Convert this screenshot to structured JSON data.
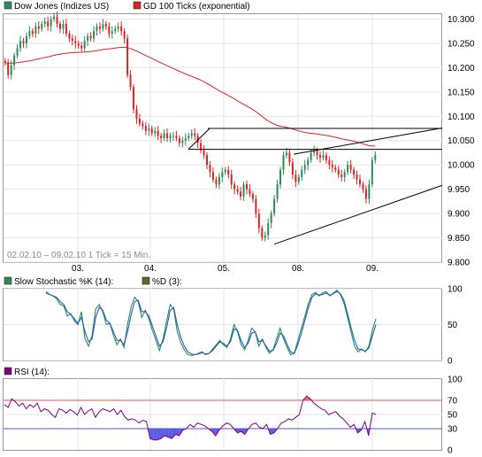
{
  "chart_data": [
    {
      "id": "price",
      "type": "candlestick",
      "legend": [
        {
          "label": "Dow Jones (Indizes US)",
          "color": "#2e8b57"
        },
        {
          "label": "GD 100 Ticks (exponential)",
          "color": "#dd2222"
        }
      ],
      "info_text": "02.02.10 – 09.02.10   1 Tick = 15 Min.",
      "x_ticks": [
        "03.",
        "04.",
        "05.",
        "08.",
        "09."
      ],
      "y_ticks": [
        "10.300",
        "10.250",
        "10.200",
        "10.150",
        "10.100",
        "10.050",
        "10.000",
        "9.950",
        "9.900",
        "9.850",
        "9.800"
      ],
      "ylim": [
        9800,
        10310
      ],
      "colors": {
        "up": "#2e8b57",
        "down": "#dd2222",
        "ema": "#dd2222",
        "trendline": "#000000"
      },
      "close_series": [
        10210,
        10185,
        10205,
        10225,
        10240,
        10255,
        10250,
        10265,
        10275,
        10270,
        10285,
        10280,
        10290,
        10295,
        10285,
        10300,
        10305,
        10290,
        10280,
        10290,
        10270,
        10260,
        10255,
        10250,
        10245,
        10240,
        10255,
        10265,
        10260,
        10275,
        10285,
        10280,
        10290,
        10285,
        10270,
        10275,
        10280,
        10285,
        10275,
        10260,
        10185,
        10160,
        10115,
        10095,
        10085,
        10080,
        10070,
        10075,
        10065,
        10070,
        10060,
        10055,
        10065,
        10055,
        10060,
        10060,
        10055,
        10045,
        10050,
        10055,
        10060,
        10065,
        10060,
        10045,
        10030,
        10020,
        10000,
        9985,
        9970,
        9960,
        9975,
        9985,
        9990,
        9980,
        9960,
        9950,
        9945,
        9935,
        9960,
        9950,
        9940,
        9930,
        9900,
        9870,
        9850,
        9855,
        9880,
        9900,
        9930,
        9960,
        9990,
        10020,
        10025,
        10005,
        9980,
        9965,
        9975,
        9990,
        10000,
        10010,
        10025,
        10030,
        10020,
        10015,
        10020,
        10010,
        10000,
        9995,
        9990,
        9980,
        9975,
        9985,
        10000,
        9990,
        9980,
        9970,
        9960,
        9950,
        9930,
        9960,
        10010,
        10020
      ]
    },
    {
      "id": "stochastic",
      "type": "line",
      "legend": [
        {
          "label": "Slow Stochastic %K (14):",
          "color": "#2e8b57"
        },
        {
          "label": "%D (3):",
          "color": "#556b2f"
        }
      ],
      "y_ticks": [
        "100",
        "50",
        "0"
      ],
      "ylim": [
        0,
        100
      ],
      "series": [
        {
          "color": "#2e8b57",
          "values": [
            96,
            92,
            90,
            86,
            78,
            76,
            62,
            65,
            55,
            50,
            68,
            30,
            20,
            35,
            72,
            78,
            68,
            50,
            52,
            35,
            22,
            30,
            18,
            50,
            75,
            88,
            82,
            60,
            70,
            58,
            42,
            28,
            14,
            30,
            55,
            78,
            72,
            40,
            25,
            15,
            8,
            7,
            8,
            10,
            12,
            8,
            10,
            16,
            22,
            28,
            22,
            18,
            30,
            50,
            40,
            22,
            15,
            28,
            45,
            40,
            20,
            30,
            18,
            10,
            15,
            30,
            45,
            30,
            18,
            8,
            10,
            28,
            45,
            62,
            80,
            92,
            95,
            90,
            94,
            96,
            90,
            94,
            98,
            92,
            80,
            60,
            40,
            20,
            12,
            16,
            12,
            20,
            42,
            58
          ]
        },
        {
          "color": "#1f5fbf",
          "values": [
            94,
            92,
            90,
            88,
            82,
            78,
            68,
            64,
            58,
            52,
            60,
            40,
            26,
            30,
            60,
            74,
            70,
            56,
            52,
            40,
            28,
            28,
            22,
            40,
            64,
            82,
            84,
            68,
            68,
            62,
            48,
            34,
            20,
            26,
            46,
            70,
            74,
            50,
            32,
            20,
            12,
            9,
            8,
            9,
            11,
            9,
            10,
            14,
            20,
            26,
            24,
            20,
            26,
            44,
            42,
            28,
            18,
            24,
            38,
            40,
            26,
            28,
            20,
            13,
            14,
            24,
            38,
            34,
            22,
            12,
            10,
            22,
            38,
            56,
            74,
            88,
            93,
            91,
            92,
            94,
            91,
            93,
            96,
            93,
            84,
            66,
            46,
            28,
            16,
            15,
            13,
            17,
            34,
            50
          ]
        }
      ]
    },
    {
      "id": "rsi",
      "type": "line",
      "legend": [
        {
          "label": "RSI (14):",
          "color": "#800080"
        }
      ],
      "y_ticks": [
        "100",
        "70",
        "50",
        "30",
        "0"
      ],
      "ylim": [
        0,
        100
      ],
      "reference_lines": [
        {
          "value": 70,
          "color": "#e05555"
        },
        {
          "value": 30,
          "color": "#5555e0"
        }
      ],
      "fill_overbought": "#e05555",
      "fill_oversold": "#4040dd",
      "series": [
        {
          "color": "#800080",
          "values": [
            64,
            60,
            72,
            68,
            62,
            66,
            58,
            64,
            60,
            66,
            54,
            58,
            56,
            50,
            46,
            58,
            56,
            52,
            57,
            54,
            49,
            60,
            50,
            55,
            58,
            46,
            54,
            58,
            56,
            54,
            58,
            50,
            56,
            47,
            42,
            44,
            42,
            38,
            42,
            40,
            16,
            14,
            14,
            16,
            20,
            18,
            16,
            22,
            20,
            28,
            30,
            36,
            32,
            38,
            36,
            34,
            30,
            26,
            20,
            28,
            34,
            38,
            36,
            30,
            24,
            26,
            22,
            30,
            36,
            38,
            32,
            30,
            36,
            22,
            24,
            30,
            38,
            40,
            44,
            42,
            46,
            50,
            70,
            76,
            72,
            66,
            62,
            58,
            56,
            50,
            52,
            54,
            48,
            44,
            38,
            32,
            36,
            24,
            28,
            40,
            20,
            52,
            50
          ]
        }
      ]
    }
  ]
}
